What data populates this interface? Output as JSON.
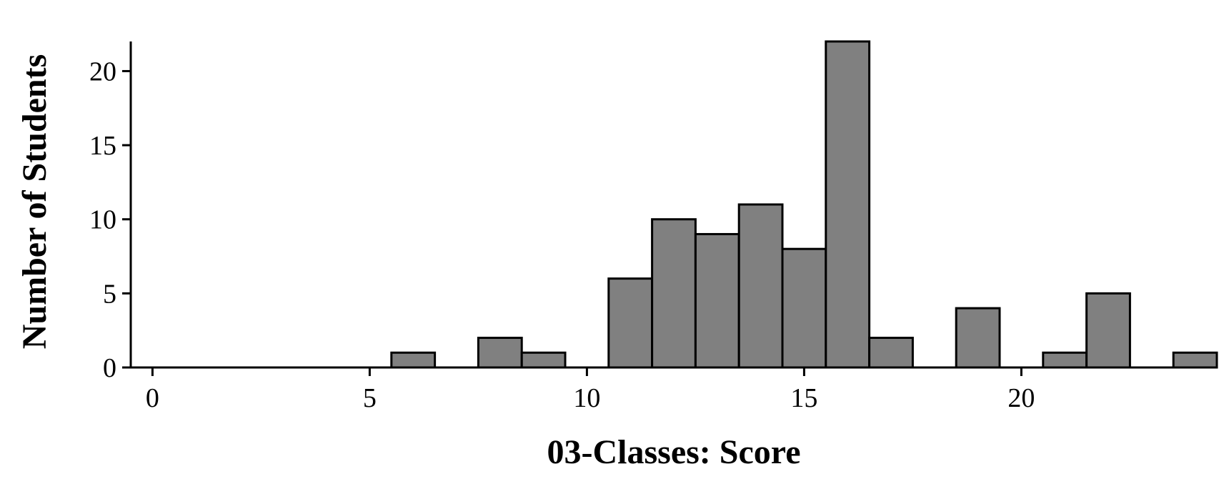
{
  "chart_data": {
    "type": "histogram",
    "x_label": "03-Classes: Score",
    "y_label": "Number of Students",
    "bins": [
      -0.5,
      0.5,
      1.5,
      2.5,
      3.5,
      4.5,
      5.5,
      6.5,
      7.5,
      8.5,
      9.5,
      10.5,
      11.5,
      12.5,
      13.5,
      14.5,
      15.5,
      16.5,
      17.5,
      18.5,
      19.5,
      20.5,
      21.5,
      22.5,
      23.5,
      24.5
    ],
    "values": [
      0,
      0,
      0,
      0,
      0,
      0,
      1,
      0,
      2,
      1,
      0,
      6,
      10,
      9,
      11,
      8,
      22,
      2,
      0,
      4,
      0,
      1,
      5,
      0,
      1
    ],
    "color": "#808080",
    "xlim": [
      -0.5,
      24.5
    ],
    "xticks": [
      0,
      5,
      10,
      15,
      20
    ],
    "ylim": [
      0,
      22
    ],
    "yticks": [
      0,
      5,
      10,
      15,
      20
    ]
  }
}
